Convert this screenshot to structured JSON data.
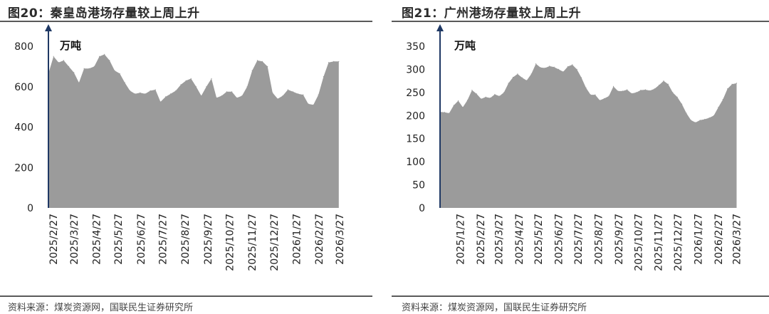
{
  "charts": [
    {
      "title": "图20：秦皇岛港场存量较上周上升",
      "source": "资料来源：煤炭资源网，国联民生证券研究所",
      "area_color": "#9b9b9b",
      "axis_color": "#1f3864",
      "chart_data": {
        "type": "area",
        "unit_label": "万吨",
        "ylim": [
          0,
          800
        ],
        "yticks": [
          0,
          200,
          400,
          600,
          800
        ],
        "x_start": "2025-02-20",
        "x_end": "2026-04-02",
        "xtick_labels": [
          "2025/2/27",
          "2025/3/27",
          "2025/4/27",
          "2025/5/27",
          "2025/6/27",
          "2025/7/27",
          "2025/8/27",
          "2025/9/27",
          "2025/10/27",
          "2025/11/27",
          "2025/12/27",
          "2026/1/27",
          "2026/2/27",
          "2026/3/27"
        ],
        "xtick_dates": [
          "2025-02-27",
          "2025-03-27",
          "2025-04-27",
          "2025-05-27",
          "2025-06-27",
          "2025-07-27",
          "2025-08-27",
          "2025-09-27",
          "2025-10-27",
          "2025-11-27",
          "2025-12-27",
          "2026-01-27",
          "2026-02-27",
          "2026-03-27"
        ],
        "x": [
          "2025-02-20",
          "2025-02-27",
          "2025-03-06",
          "2025-03-13",
          "2025-03-20",
          "2025-03-27",
          "2025-04-03",
          "2025-04-10",
          "2025-04-17",
          "2025-04-24",
          "2025-05-01",
          "2025-05-08",
          "2025-05-15",
          "2025-05-22",
          "2025-05-29",
          "2025-06-05",
          "2025-06-12",
          "2025-06-19",
          "2025-06-26",
          "2025-07-03",
          "2025-07-10",
          "2025-07-17",
          "2025-07-24",
          "2025-07-31",
          "2025-08-07",
          "2025-08-14",
          "2025-08-21",
          "2025-08-28",
          "2025-09-04",
          "2025-09-11",
          "2025-09-18",
          "2025-09-25",
          "2025-10-02",
          "2025-10-09",
          "2025-10-16",
          "2025-10-23",
          "2025-10-30",
          "2025-11-06",
          "2025-11-13",
          "2025-11-20",
          "2025-11-27",
          "2025-12-04",
          "2025-12-11",
          "2025-12-18",
          "2025-12-25",
          "2026-01-01",
          "2026-01-08",
          "2026-01-15",
          "2026-01-22",
          "2026-01-29",
          "2026-02-05",
          "2026-02-12",
          "2026-02-19",
          "2026-02-26",
          "2026-03-05",
          "2026-03-12",
          "2026-03-19",
          "2026-03-26"
        ],
        "values": [
          665,
          750,
          720,
          730,
          700,
          670,
          620,
          690,
          690,
          700,
          750,
          760,
          730,
          680,
          665,
          620,
          580,
          565,
          570,
          565,
          580,
          585,
          525,
          550,
          565,
          580,
          610,
          630,
          640,
          600,
          555,
          600,
          640,
          545,
          555,
          575,
          575,
          545,
          555,
          600,
          680,
          730,
          725,
          700,
          570,
          540,
          555,
          585,
          575,
          565,
          560,
          515,
          510,
          560,
          650,
          720,
          725,
          725
        ]
      }
    },
    {
      "title": "图21：广州港场存量较上周上升",
      "source": "资料来源：煤炭资源网，国联民生证券研究所",
      "area_color": "#9b9b9b",
      "axis_color": "#1f3864",
      "chart_data": {
        "type": "area",
        "unit_label": "万吨",
        "ylim": [
          0,
          350
        ],
        "yticks": [
          0,
          50,
          100,
          150,
          200,
          250,
          300,
          350
        ],
        "x_start": "2024-12-27",
        "x_end": "2026-04-02",
        "xtick_labels": [
          "2025/1/27",
          "2025/2/27",
          "2025/3/27",
          "2025/4/27",
          "2025/5/27",
          "2025/6/27",
          "2025/7/27",
          "2025/8/27",
          "2025/9/27",
          "2025/10/27",
          "2025/11/27",
          "2025/12/27",
          "2026/1/27",
          "2026/2/27",
          "2026/3/27"
        ],
        "xtick_dates": [
          "2025-01-27",
          "2025-02-27",
          "2025-03-27",
          "2025-04-27",
          "2025-05-27",
          "2025-06-27",
          "2025-07-27",
          "2025-08-27",
          "2025-09-27",
          "2025-10-27",
          "2025-11-27",
          "2025-12-27",
          "2026-01-27",
          "2026-02-27",
          "2026-03-27"
        ],
        "x": [
          "2024-12-27",
          "2025-01-03",
          "2025-01-10",
          "2025-01-17",
          "2025-01-24",
          "2025-01-31",
          "2025-02-07",
          "2025-02-14",
          "2025-02-21",
          "2025-02-28",
          "2025-03-07",
          "2025-03-14",
          "2025-03-21",
          "2025-03-28",
          "2025-04-04",
          "2025-04-11",
          "2025-04-18",
          "2025-04-25",
          "2025-05-02",
          "2025-05-09",
          "2025-05-16",
          "2025-05-23",
          "2025-05-30",
          "2025-06-06",
          "2025-06-13",
          "2025-06-20",
          "2025-06-27",
          "2025-07-04",
          "2025-07-11",
          "2025-07-18",
          "2025-07-25",
          "2025-08-01",
          "2025-08-08",
          "2025-08-15",
          "2025-08-22",
          "2025-08-29",
          "2025-09-05",
          "2025-09-12",
          "2025-09-19",
          "2025-09-26",
          "2025-10-03",
          "2025-10-10",
          "2025-10-17",
          "2025-10-24",
          "2025-10-31",
          "2025-11-07",
          "2025-11-14",
          "2025-11-21",
          "2025-11-28",
          "2025-12-05",
          "2025-12-12",
          "2025-12-19",
          "2025-12-26",
          "2026-01-02",
          "2026-01-09",
          "2026-01-16",
          "2026-01-23",
          "2026-01-30",
          "2026-02-06",
          "2026-02-13",
          "2026-02-20",
          "2026-02-27",
          "2026-03-06",
          "2026-03-13",
          "2026-03-20",
          "2026-03-27"
        ],
        "values": [
          208,
          207,
          205,
          222,
          232,
          218,
          233,
          255,
          247,
          236,
          240,
          238,
          246,
          242,
          250,
          270,
          283,
          290,
          282,
          276,
          290,
          312,
          304,
          303,
          307,
          305,
          300,
          295,
          306,
          310,
          300,
          282,
          260,
          245,
          245,
          233,
          237,
          242,
          263,
          253,
          253,
          256,
          248,
          250,
          255,
          256,
          254,
          258,
          266,
          275,
          268,
          250,
          240,
          225,
          205,
          190,
          185,
          190,
          192,
          195,
          200,
          218,
          235,
          258,
          268,
          270
        ]
      }
    }
  ]
}
